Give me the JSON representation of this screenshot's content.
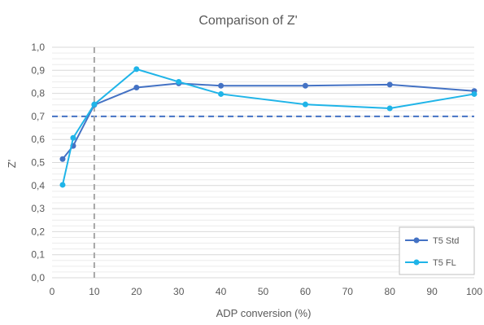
{
  "chart_data": {
    "type": "line",
    "title": "Comparison of Z'",
    "xlabel": "ADP conversion (%)",
    "ylabel": "Z'",
    "xlim": [
      0,
      100
    ],
    "ylim": [
      0,
      1.0
    ],
    "x_ticks": [
      "0",
      "10",
      "20",
      "30",
      "40",
      "50",
      "60",
      "70",
      "80",
      "90",
      "100"
    ],
    "y_ticks": [
      "0,0",
      "0,1",
      "0,2",
      "0,3",
      "0,4",
      "0,5",
      "0,6",
      "0,7",
      "0,8",
      "0,9",
      "1,0"
    ],
    "grid": true,
    "legend_position": "bottom-right",
    "reference_lines": [
      {
        "axis": "y",
        "value": 0.7,
        "style": "dashed",
        "color": "#4472c4"
      },
      {
        "axis": "x",
        "value": 10,
        "style": "dashed",
        "color": "#a6a6a6"
      }
    ],
    "series": [
      {
        "name": "T5 Std",
        "color": "#4472c4",
        "x": [
          2.5,
          5,
          10,
          20,
          30,
          40,
          60,
          80,
          100
        ],
        "y": [
          0.515,
          0.572,
          0.75,
          0.825,
          0.843,
          0.833,
          0.833,
          0.838,
          0.81
        ]
      },
      {
        "name": "T5 FL",
        "color": "#1fb4e8",
        "x": [
          2.5,
          5,
          10,
          20,
          30,
          40,
          60,
          80,
          100
        ],
        "y": [
          0.403,
          0.607,
          0.752,
          0.905,
          0.85,
          0.797,
          0.752,
          0.735,
          0.797
        ]
      }
    ]
  }
}
